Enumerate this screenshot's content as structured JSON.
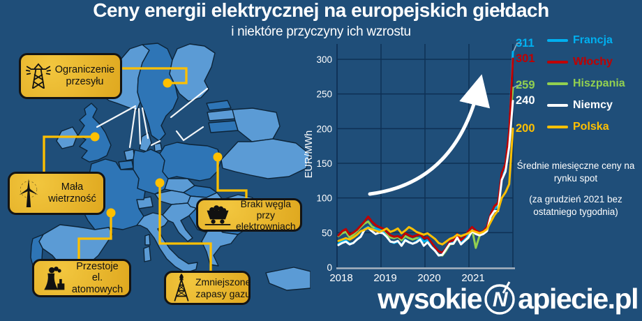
{
  "title": "Ceny energii elektrycznej na europejskich giełdach",
  "subtitle": "i niektóre przyczyny ich wzrostu",
  "map": {
    "callouts": [
      {
        "label": "Ograniczenie przesyłu",
        "icon": "transmission-tower-icon",
        "target": "Szwecja"
      },
      {
        "label": "Mała wietrzność",
        "icon": "wind-turbine-icon",
        "target": "Wielka Brytania"
      },
      {
        "label": "Braki węgla przy elektrowniach",
        "icon": "coal-cart-icon",
        "target": "Polska"
      },
      {
        "label": "Przestoje el. atomowych",
        "icon": "nuclear-plant-icon",
        "target": "Francja"
      },
      {
        "label": "Zmniejszone zapasy gazu",
        "icon": "gas-rig-icon",
        "target": "Niemcy"
      }
    ],
    "colors": {
      "background": "#1F4E79",
      "country_light": "#5B9BD5",
      "country_dark": "#2E75B6",
      "border": "#0D2438",
      "connector": "#FFC000"
    }
  },
  "chart_data": {
    "type": "line",
    "ylabel": "EUR/MWh",
    "x_tick_labels": [
      "2018",
      "2019",
      "2020",
      "2021"
    ],
    "y_ticks": [
      0,
      50,
      100,
      150,
      200,
      250,
      300
    ],
    "ylim": [
      0,
      320
    ],
    "grid": true,
    "legend_position": "right",
    "x_unit": "month",
    "series": [
      {
        "name": "Francja",
        "color": "#00B0F0",
        "values": [
          34,
          38,
          39,
          34,
          35,
          40,
          45,
          55,
          58,
          53,
          56,
          54,
          51,
          44,
          37,
          35,
          37,
          32,
          40,
          36,
          34,
          37,
          42,
          37,
          39,
          30,
          25,
          17,
          18,
          26,
          34,
          36,
          45,
          36,
          41,
          46,
          56,
          50,
          47,
          50,
          55,
          74,
          85,
          87,
          131,
          145,
          192,
          311
        ]
      },
      {
        "name": "Włochy",
        "color": "#C00000",
        "values": [
          46,
          52,
          55,
          47,
          50,
          54,
          60,
          66,
          73,
          66,
          61,
          58,
          56,
          51,
          46,
          44,
          45,
          42,
          49,
          46,
          44,
          46,
          48,
          42,
          43,
          36,
          29,
          23,
          21,
          27,
          37,
          39,
          48,
          39,
          44,
          52,
          58,
          53,
          50,
          52,
          58,
          76,
          88,
          93,
          136,
          149,
          196,
          301
        ]
      },
      {
        "name": "Hiszpania",
        "color": "#92D050",
        "values": [
          45,
          49,
          51,
          43,
          47,
          52,
          58,
          63,
          66,
          59,
          56,
          54,
          52,
          47,
          43,
          42,
          44,
          39,
          45,
          42,
          40,
          42,
          42,
          37,
          38,
          30,
          24,
          18,
          17,
          24,
          33,
          34,
          42,
          34,
          38,
          42,
          55,
          28,
          45,
          52,
          56,
          72,
          84,
          90,
          130,
          146,
          193,
          259
        ]
      },
      {
        "name": "Niemcy",
        "color": "#FFFFFF",
        "values": [
          32,
          35,
          37,
          33,
          35,
          40,
          44,
          54,
          57,
          52,
          48,
          50,
          49,
          44,
          37,
          36,
          38,
          31,
          39,
          36,
          34,
          36,
          40,
          31,
          36,
          29,
          24,
          17,
          18,
          26,
          34,
          34,
          43,
          33,
          38,
          43,
          52,
          48,
          46,
          48,
          52,
          73,
          81,
          81,
          126,
          138,
          174,
          240
        ]
      },
      {
        "name": "Polska",
        "color": "#FFC000",
        "values": [
          38,
          40,
          42,
          40,
          43,
          47,
          52,
          54,
          57,
          55,
          53,
          51,
          53,
          56,
          51,
          53,
          56,
          49,
          53,
          58,
          55,
          51,
          49,
          47,
          49,
          45,
          41,
          35,
          33,
          37,
          41,
          43,
          47,
          45,
          47,
          49,
          53,
          51,
          49,
          51,
          55,
          65,
          75,
          82,
          100,
          108,
          120,
          200
        ]
      }
    ],
    "end_labels": [
      311,
      301,
      259,
      240,
      200
    ],
    "note_line1": "Średnie miesięczne ceny na rynku spot",
    "note_line2": "(za grudzień 2021 bez ostatniego tygodnia)"
  },
  "logo": {
    "prefix": "wysokie",
    "letter": "N",
    "suffix": "apiecie.pl"
  }
}
